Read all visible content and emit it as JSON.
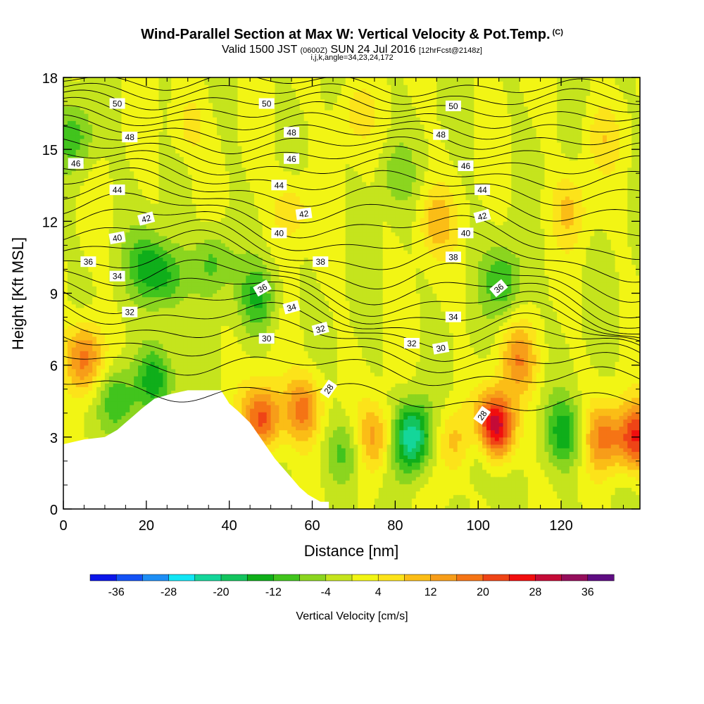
{
  "header": {
    "title": "Wind-Parallel Section at Max W: Vertical Velocity & Pot.Temp.",
    "copyright": "(C)",
    "valid_prefix": "Valid 1500 JST",
    "valid_utc": "(0600Z)",
    "valid_date": "SUN 24 Jul 2016",
    "forecast": "[12hrFcst@2148z]",
    "indices": "i,j,k,angle=34,23,24,172"
  },
  "chart_data": {
    "type": "contour",
    "xlabel": "Distance [nm]",
    "ylabel": "Height [Kft MSL]",
    "xlim": [
      0,
      139
    ],
    "ylim": [
      0,
      18
    ],
    "x_ticks": [
      "0",
      "20",
      "40",
      "60",
      "80",
      "100",
      "120"
    ],
    "y_ticks": [
      "0",
      "3",
      "6",
      "9",
      "12",
      "15",
      "18"
    ],
    "colorbar": {
      "label": "Vertical Velocity [cm/s]",
      "ticks": [
        "-36",
        "-28",
        "-20",
        "-12",
        "-4",
        "4",
        "12",
        "20",
        "28",
        "36"
      ],
      "levels": [
        -40,
        -36,
        -32,
        -28,
        -24,
        -20,
        -16,
        -12,
        -8,
        -4,
        0,
        4,
        8,
        12,
        16,
        20,
        24,
        28,
        32,
        36,
        40
      ],
      "colors": [
        "#0b16e9",
        "#1452f5",
        "#1e8ef5",
        "#12e6f5",
        "#14d69a",
        "#13c45e",
        "#0fae1a",
        "#41c41d",
        "#8bd51f",
        "#c5e41d",
        "#f2f514",
        "#fce31a",
        "#fbbd16",
        "#f79d19",
        "#f57415",
        "#ef4416",
        "#f10e0e",
        "#c40b37",
        "#940e5b",
        "#5e0d82"
      ]
    },
    "velocity_features": [
      {
        "x": 5,
        "y": 6.3,
        "value": 20
      },
      {
        "x": 13,
        "y": 4.5,
        "value": -14
      },
      {
        "x": 22,
        "y": 5.5,
        "value": -14
      },
      {
        "x": 20,
        "y": 10.2,
        "value": -12
      },
      {
        "x": 25,
        "y": 9.6,
        "value": -12
      },
      {
        "x": 36,
        "y": 10.3,
        "value": -10
      },
      {
        "x": 47,
        "y": 8.8,
        "value": -12
      },
      {
        "x": 48,
        "y": 3.8,
        "value": 22
      },
      {
        "x": 58,
        "y": 4.2,
        "value": 18
      },
      {
        "x": 68,
        "y": 2.4,
        "value": -10
      },
      {
        "x": 75,
        "y": 3.0,
        "value": 14
      },
      {
        "x": 84,
        "y": 3.0,
        "value": -24
      },
      {
        "x": 94,
        "y": 2.8,
        "value": 10
      },
      {
        "x": 101,
        "y": 2.6,
        "value": -12
      },
      {
        "x": 104,
        "y": 3.4,
        "value": 36
      },
      {
        "x": 106,
        "y": 9.5,
        "value": -12
      },
      {
        "x": 110,
        "y": 6.2,
        "value": 14
      },
      {
        "x": 121,
        "y": 3.2,
        "value": -14
      },
      {
        "x": 130,
        "y": 3.0,
        "value": 16
      },
      {
        "x": 138,
        "y": 3.0,
        "value": 24
      },
      {
        "x": 3,
        "y": 15.5,
        "value": -10
      },
      {
        "x": 90,
        "y": 12.0,
        "value": 10
      },
      {
        "x": 122,
        "y": 12.5,
        "value": 8
      },
      {
        "x": 55,
        "y": 12.5,
        "value": 8
      },
      {
        "x": 30,
        "y": 16.0,
        "value": 6
      },
      {
        "x": 70,
        "y": 16.5,
        "value": 6
      },
      {
        "x": 130,
        "y": 15.5,
        "value": 6
      },
      {
        "x": 80,
        "y": 14.0,
        "value": -6
      }
    ],
    "terrain": [
      [
        0,
        2.7
      ],
      [
        5,
        2.9
      ],
      [
        10,
        3.0
      ],
      [
        13,
        3.3
      ],
      [
        15,
        3.6
      ],
      [
        17,
        3.9
      ],
      [
        19,
        4.2
      ],
      [
        22,
        4.6
      ],
      [
        26,
        4.8
      ],
      [
        30,
        4.95
      ],
      [
        34,
        4.95
      ],
      [
        38,
        4.95
      ],
      [
        40,
        4.4
      ],
      [
        42,
        4.1
      ],
      [
        45,
        3.6
      ],
      [
        47,
        3.1
      ],
      [
        49,
        2.6
      ],
      [
        51,
        2.1
      ],
      [
        53,
        1.7
      ],
      [
        55,
        1.3
      ],
      [
        57,
        0.9
      ],
      [
        59,
        0.6
      ],
      [
        62,
        0.3
      ],
      [
        64,
        0.3
      ]
    ],
    "theta_levels": [
      28,
      30,
      32,
      34,
      36,
      38,
      40,
      42,
      44,
      46,
      48,
      50
    ],
    "theta_labels": [
      {
        "text": "50",
        "x": 13,
        "y": 16.9,
        "angle": 0
      },
      {
        "text": "50",
        "x": 49,
        "y": 16.9,
        "angle": 0
      },
      {
        "text": "50",
        "x": 94,
        "y": 16.8,
        "angle": 0
      },
      {
        "text": "48",
        "x": 16,
        "y": 15.5,
        "angle": 0
      },
      {
        "text": "48",
        "x": 55,
        "y": 15.7,
        "angle": 0
      },
      {
        "text": "48",
        "x": 91,
        "y": 15.6,
        "angle": 0
      },
      {
        "text": "46",
        "x": 3,
        "y": 14.4,
        "angle": 0
      },
      {
        "text": "46",
        "x": 55,
        "y": 14.6,
        "angle": 0
      },
      {
        "text": "46",
        "x": 97,
        "y": 14.3,
        "angle": 0
      },
      {
        "text": "44",
        "x": 13,
        "y": 13.3,
        "angle": 0
      },
      {
        "text": "44",
        "x": 52,
        "y": 13.5,
        "angle": 0
      },
      {
        "text": "44",
        "x": 101,
        "y": 13.3,
        "angle": 0
      },
      {
        "text": "42",
        "x": 20,
        "y": 12.1,
        "angle": -15
      },
      {
        "text": "42",
        "x": 58,
        "y": 12.3,
        "angle": -8
      },
      {
        "text": "42",
        "x": 101,
        "y": 12.2,
        "angle": -15
      },
      {
        "text": "40",
        "x": 13,
        "y": 11.3,
        "angle": -10
      },
      {
        "text": "40",
        "x": 52,
        "y": 11.5,
        "angle": 0
      },
      {
        "text": "40",
        "x": 97,
        "y": 11.5,
        "angle": 0
      },
      {
        "text": "38",
        "x": 62,
        "y": 10.3,
        "angle": 0
      },
      {
        "text": "38",
        "x": 94,
        "y": 10.5,
        "angle": 0
      },
      {
        "text": "36",
        "x": 6,
        "y": 10.3,
        "angle": 0
      },
      {
        "text": "36",
        "x": 48,
        "y": 9.2,
        "angle": -30
      },
      {
        "text": "36",
        "x": 105,
        "y": 9.2,
        "angle": -40
      },
      {
        "text": "34",
        "x": 13,
        "y": 9.7,
        "angle": 0
      },
      {
        "text": "34",
        "x": 55,
        "y": 8.4,
        "angle": -15
      },
      {
        "text": "34",
        "x": 94,
        "y": 8.0,
        "angle": 0
      },
      {
        "text": "32",
        "x": 16,
        "y": 8.2,
        "angle": 0
      },
      {
        "text": "32",
        "x": 62,
        "y": 7.5,
        "angle": -15
      },
      {
        "text": "32",
        "x": 84,
        "y": 6.9,
        "angle": 0
      },
      {
        "text": "30",
        "x": 49,
        "y": 7.1,
        "angle": 0
      },
      {
        "text": "30",
        "x": 91,
        "y": 6.7,
        "angle": -10
      },
      {
        "text": "28",
        "x": 64,
        "y": 5.0,
        "angle": -55
      },
      {
        "text": "28",
        "x": 101,
        "y": 3.9,
        "angle": -55
      }
    ]
  }
}
